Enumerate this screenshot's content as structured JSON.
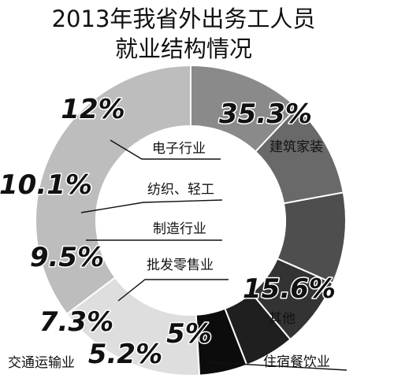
{
  "chart_data": {
    "type": "pie",
    "title": [
      "2013年我省外出务工人员",
      "就业结构情况"
    ],
    "series": [
      {
        "category": "建筑家装",
        "label": "35.3%",
        "value": 35.3,
        "color": "#bdbdbd"
      },
      {
        "category": "其他",
        "label": "15.6%",
        "value": 15.6,
        "color": "#dedede"
      },
      {
        "category": "住宿餐饮业",
        "label": "5%",
        "value": 5.0,
        "color": "#0c0c0c"
      },
      {
        "category": "交通运输业",
        "label": "5.2%",
        "value": 5.2,
        "color": "#1f1f1f"
      },
      {
        "category": "批发零售业",
        "label": "7.3%",
        "value": 7.3,
        "color": "#333333"
      },
      {
        "category": "制造行业",
        "label": "9.5%",
        "value": 9.5,
        "color": "#4e4e4e"
      },
      {
        "category": "纺织、轻工",
        "label": "10.1%",
        "value": 10.1,
        "color": "#696969"
      },
      {
        "category": "电子行业",
        "label": "12%",
        "value": 12.0,
        "color": "#8a8a8a"
      }
    ]
  }
}
